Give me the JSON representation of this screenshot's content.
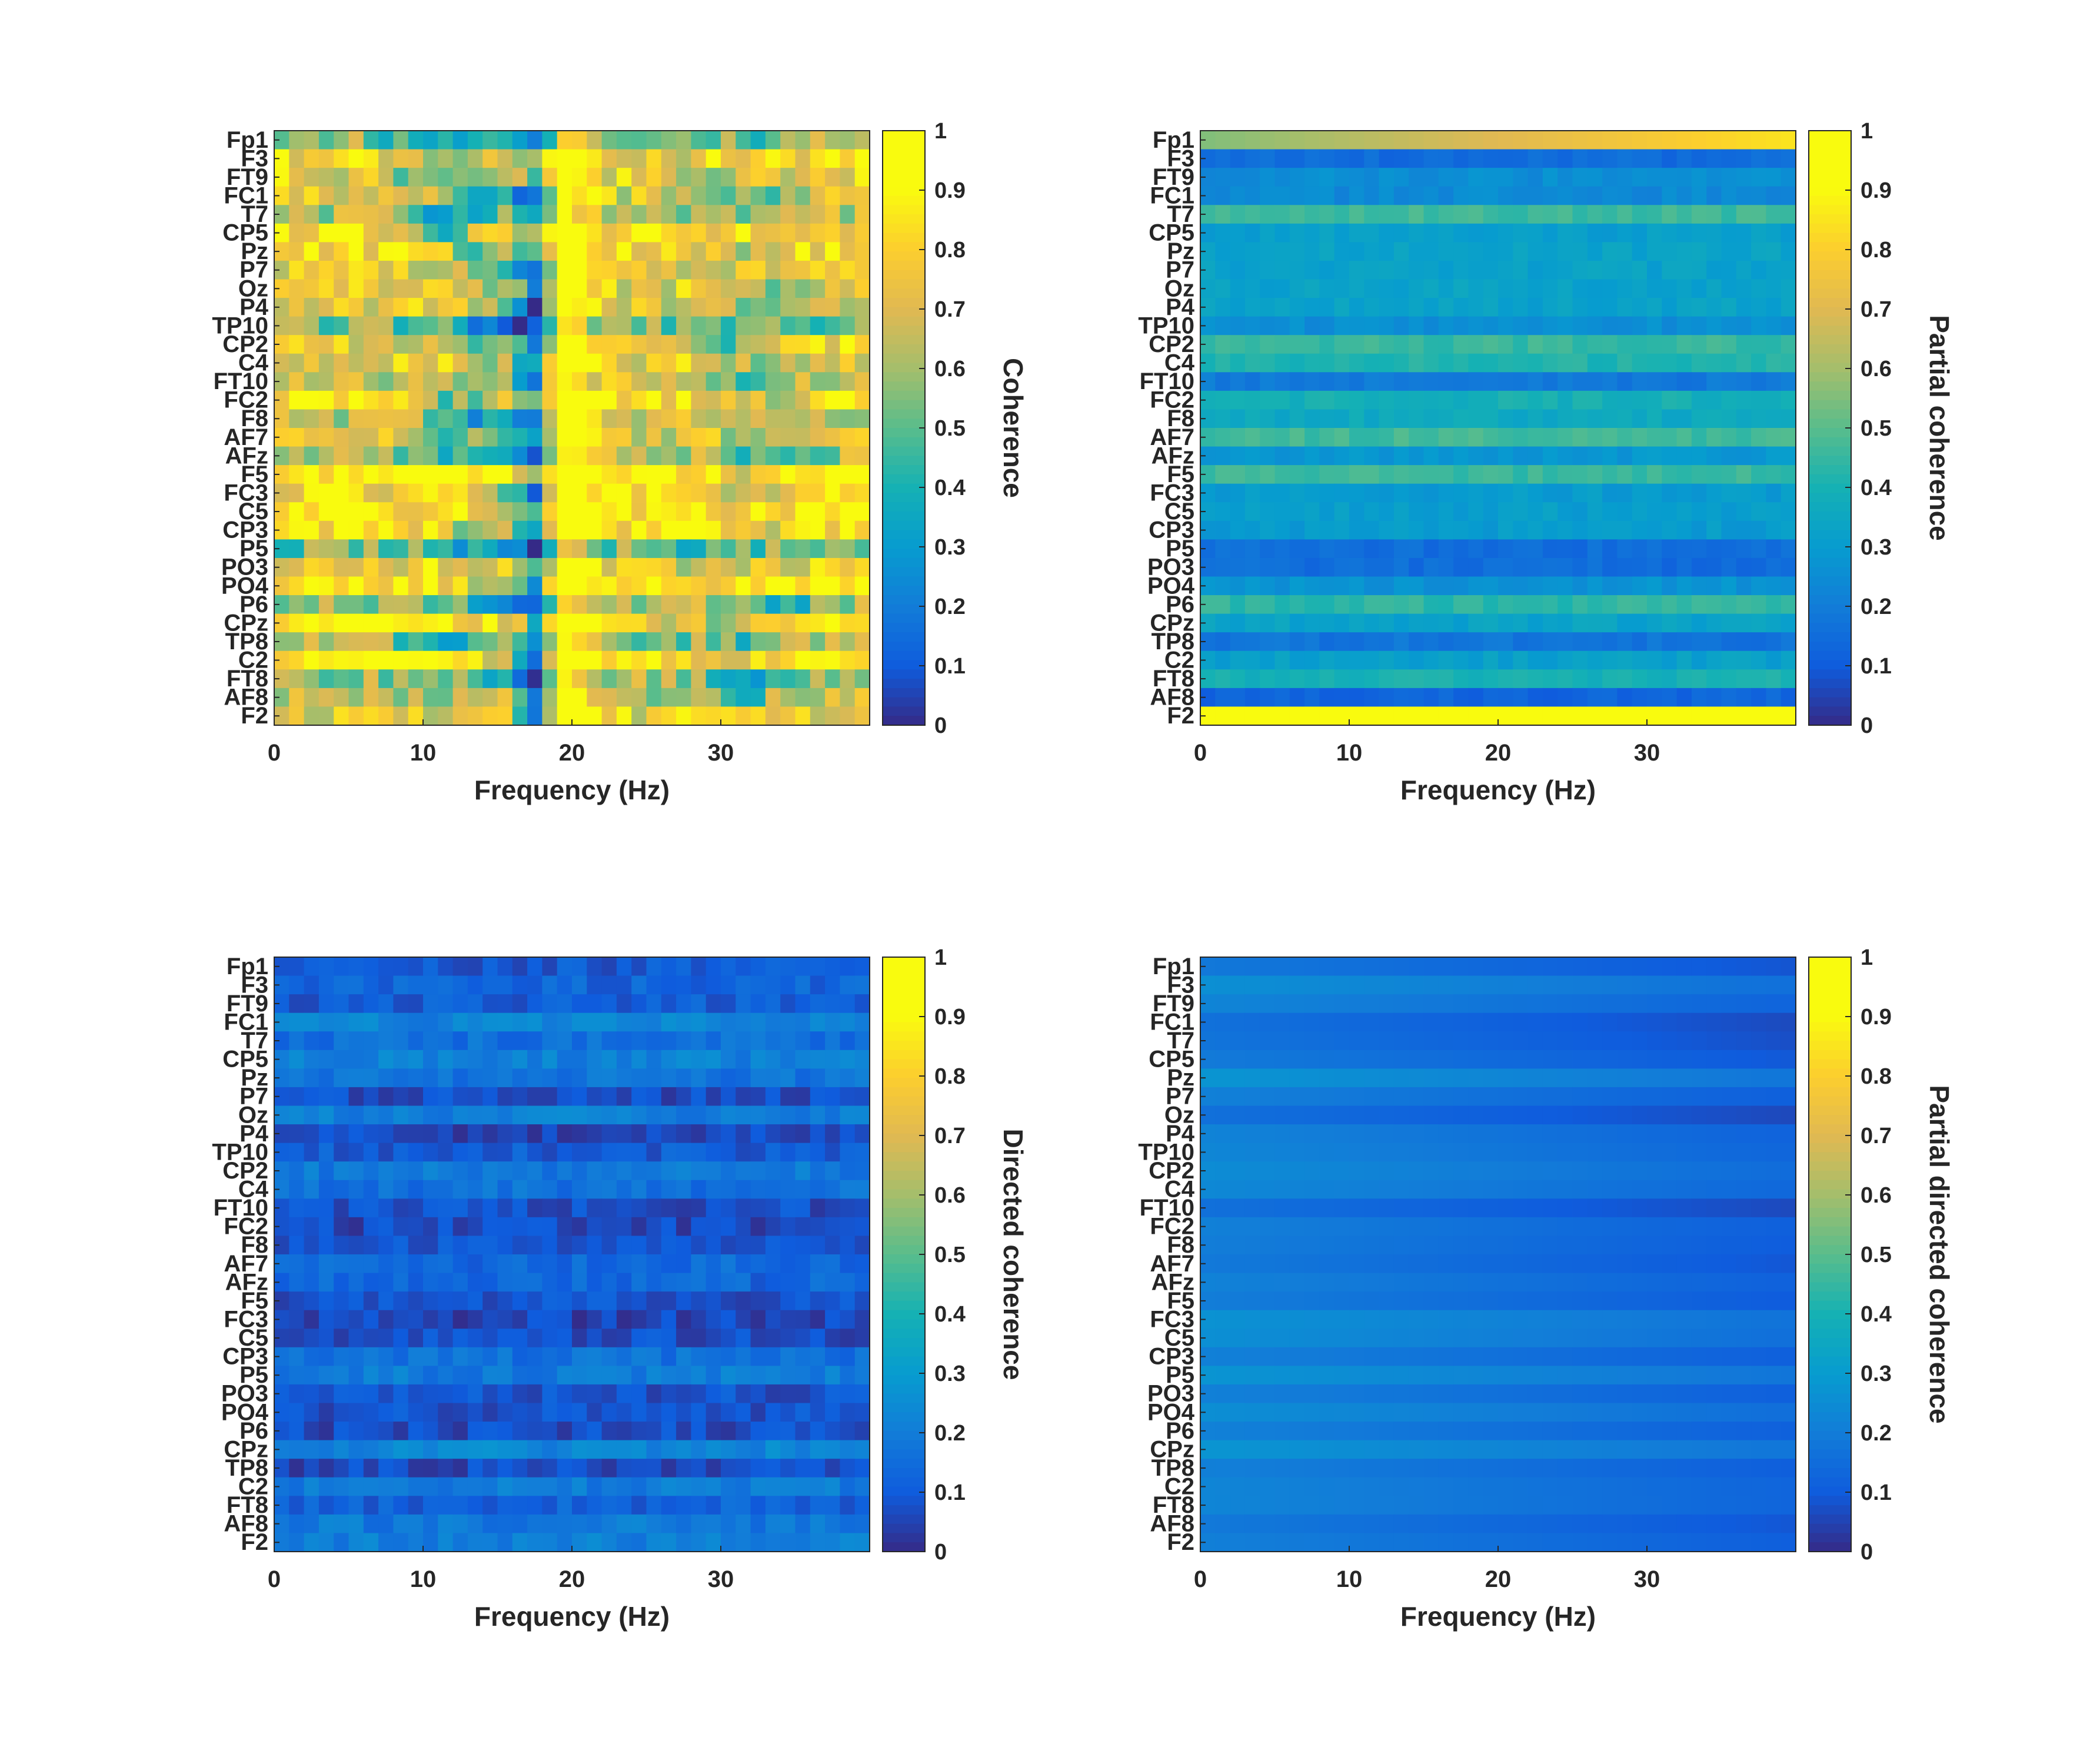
{
  "figure": {
    "background": "#ffffff",
    "text_color": "#262626",
    "colormap": "parula"
  },
  "channels": [
    "Fp1",
    "F3",
    "FT9",
    "FC1",
    "T7",
    "CP5",
    "Pz",
    "P7",
    "Oz",
    "P4",
    "TP10",
    "CP2",
    "C4",
    "FT10",
    "FC2",
    "F8",
    "AF7",
    "AFz",
    "F5",
    "FC3",
    "C5",
    "CP3",
    "P5",
    "PO3",
    "PO4",
    "P6",
    "CPz",
    "TP8",
    "C2",
    "FT8",
    "AF8",
    "F2"
  ],
  "chart_data": [
    {
      "id": "coherence",
      "type": "heatmap",
      "title": "",
      "xlabel": "Frequency (Hz)",
      "ylabel": "",
      "xlim": [
        0,
        40
      ],
      "xticks": [
        0,
        10,
        20,
        30
      ],
      "xtick_labels": [
        "0",
        "10",
        "20",
        "30"
      ],
      "colorbar_label": "Coherence",
      "clim": [
        0,
        1
      ],
      "colorbar_ticks": [
        "0",
        "0.1",
        "0.2",
        "0.3",
        "0.4",
        "0.5",
        "0.6",
        "0.7",
        "0.8",
        "0.9",
        "1"
      ],
      "pattern": {
        "base": 0.72,
        "row_var": 0.2,
        "freq_var": 0.15,
        "dip_center_hz": 17.5,
        "dip_depth": 0.6,
        "peak_center_hz": 19.5,
        "peak_height": 0.3
      }
    },
    {
      "id": "partial_coherence",
      "type": "heatmap",
      "title": "",
      "xlabel": "Frequency (Hz)",
      "ylabel": "",
      "xlim": [
        0,
        40
      ],
      "xticks": [
        0,
        10,
        20,
        30
      ],
      "xtick_labels": [
        "0",
        "10",
        "20",
        "30"
      ],
      "colorbar_label": "Partial coherence",
      "clim": [
        0,
        1
      ],
      "colorbar_ticks": [
        "0",
        "0.1",
        "0.2",
        "0.3",
        "0.4",
        "0.5",
        "0.6",
        "0.7",
        "0.8",
        "0.9",
        "1"
      ],
      "pattern": {
        "base": 0.3,
        "row_var": 0.18,
        "freq_var": 0.03,
        "first_row": 0.85,
        "last_row": 0.9
      }
    },
    {
      "id": "directed_coherence",
      "type": "heatmap",
      "title": "",
      "xlabel": "Frequency (Hz)",
      "ylabel": "",
      "xlim": [
        0,
        40
      ],
      "xticks": [
        0,
        10,
        20,
        30
      ],
      "xtick_labels": [
        "0",
        "10",
        "20",
        "30"
      ],
      "colorbar_label": "Directed coherence",
      "clim": [
        0,
        1
      ],
      "colorbar_ticks": [
        "0",
        "0.1",
        "0.2",
        "0.3",
        "0.4",
        "0.5",
        "0.6",
        "0.7",
        "0.8",
        "0.9",
        "1"
      ],
      "pattern": {
        "base": 0.14,
        "row_var": 0.09,
        "freq_var": 0.05
      }
    },
    {
      "id": "partial_directed_coherence",
      "type": "heatmap",
      "title": "",
      "xlabel": "Frequency (Hz)",
      "ylabel": "",
      "xlim": [
        0,
        40
      ],
      "xticks": [
        0,
        10,
        20,
        30
      ],
      "xtick_labels": [
        "0",
        "10",
        "20",
        "30"
      ],
      "colorbar_label": "Partial directed coherence",
      "clim": [
        0,
        1
      ],
      "colorbar_ticks": [
        "0",
        "0.1",
        "0.2",
        "0.3",
        "0.4",
        "0.5",
        "0.6",
        "0.7",
        "0.8",
        "0.9",
        "1"
      ],
      "pattern": {
        "base": 0.22,
        "row_var": 0.06,
        "freq_var": 0.0,
        "decay": 0.1
      }
    }
  ]
}
